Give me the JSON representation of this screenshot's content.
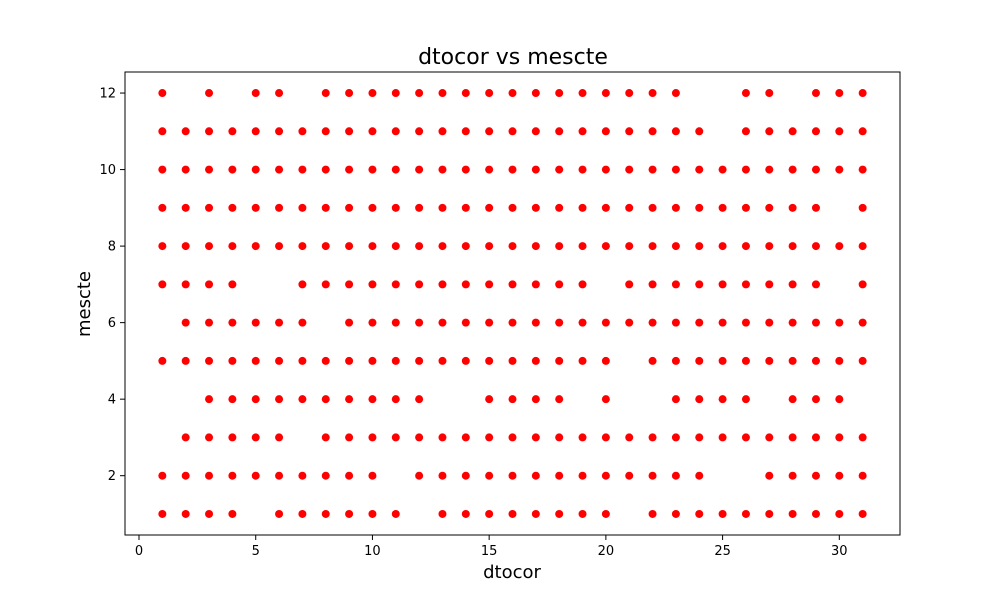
{
  "chart_data": {
    "type": "scatter",
    "title": "dtocor vs mescte",
    "xlabel": "dtocor",
    "ylabel": "mescte",
    "xlim": [
      -0.6,
      32.6
    ],
    "ylim": [
      0.45,
      12.55
    ],
    "xticks": [
      0,
      5,
      10,
      15,
      20,
      25,
      30
    ],
    "yticks": [
      2,
      4,
      6,
      8,
      10,
      12
    ],
    "grid": false,
    "point_color": "#ff0000",
    "rows": [
      {
        "y": 12,
        "x": [
          1,
          3,
          5,
          6,
          8,
          9,
          10,
          11,
          12,
          13,
          14,
          15,
          16,
          17,
          18,
          19,
          20,
          21,
          22,
          23,
          26,
          27,
          29,
          30,
          31
        ]
      },
      {
        "y": 11,
        "x": [
          1,
          2,
          3,
          4,
          5,
          6,
          7,
          8,
          9,
          10,
          11,
          12,
          13,
          14,
          15,
          16,
          17,
          18,
          19,
          20,
          21,
          22,
          23,
          24,
          26,
          27,
          28,
          29,
          30,
          31
        ]
      },
      {
        "y": 10,
        "x": [
          1,
          2,
          3,
          4,
          5,
          6,
          7,
          8,
          9,
          10,
          11,
          12,
          13,
          14,
          15,
          16,
          17,
          18,
          19,
          20,
          21,
          22,
          23,
          24,
          25,
          26,
          27,
          28,
          29,
          30,
          31
        ]
      },
      {
        "y": 9,
        "x": [
          1,
          2,
          3,
          4,
          5,
          6,
          7,
          8,
          9,
          10,
          11,
          12,
          13,
          14,
          15,
          16,
          17,
          18,
          19,
          20,
          21,
          22,
          23,
          24,
          25,
          26,
          27,
          28,
          29,
          31
        ]
      },
      {
        "y": 8,
        "x": [
          1,
          2,
          3,
          4,
          5,
          6,
          7,
          8,
          9,
          10,
          11,
          12,
          13,
          14,
          15,
          16,
          17,
          18,
          19,
          20,
          21,
          22,
          23,
          24,
          25,
          26,
          27,
          28,
          29,
          30,
          31
        ]
      },
      {
        "y": 7,
        "x": [
          1,
          2,
          3,
          4,
          7,
          8,
          9,
          10,
          11,
          12,
          13,
          14,
          15,
          16,
          17,
          18,
          19,
          21,
          22,
          23,
          24,
          25,
          26,
          27,
          28,
          29,
          31
        ]
      },
      {
        "y": 6,
        "x": [
          2,
          3,
          4,
          5,
          6,
          7,
          9,
          10,
          11,
          12,
          13,
          14,
          15,
          16,
          17,
          18,
          19,
          20,
          21,
          22,
          23,
          24,
          25,
          26,
          27,
          28,
          29,
          30,
          31
        ]
      },
      {
        "y": 5,
        "x": [
          1,
          2,
          3,
          4,
          5,
          6,
          7,
          8,
          9,
          10,
          11,
          12,
          13,
          14,
          15,
          16,
          17,
          18,
          19,
          20,
          22,
          23,
          24,
          25,
          26,
          27,
          28,
          29,
          30,
          31
        ]
      },
      {
        "y": 4,
        "x": [
          3,
          4,
          5,
          6,
          7,
          8,
          9,
          10,
          11,
          12,
          15,
          16,
          17,
          18,
          20,
          23,
          24,
          25,
          26,
          28,
          29,
          30
        ]
      },
      {
        "y": 3,
        "x": [
          2,
          3,
          4,
          5,
          6,
          8,
          9,
          10,
          11,
          12,
          13,
          14,
          15,
          16,
          17,
          18,
          19,
          20,
          21,
          22,
          23,
          24,
          25,
          26,
          27,
          28,
          29,
          30,
          31
        ]
      },
      {
        "y": 2,
        "x": [
          1,
          2,
          3,
          4,
          5,
          6,
          7,
          8,
          9,
          10,
          12,
          13,
          14,
          15,
          16,
          17,
          18,
          19,
          20,
          21,
          22,
          23,
          24,
          27,
          28,
          29,
          30,
          31
        ]
      },
      {
        "y": 1,
        "x": [
          1,
          2,
          3,
          4,
          6,
          7,
          8,
          9,
          10,
          11,
          13,
          14,
          15,
          16,
          17,
          18,
          19,
          20,
          22,
          23,
          24,
          25,
          26,
          27,
          28,
          29,
          30,
          31
        ]
      }
    ]
  }
}
